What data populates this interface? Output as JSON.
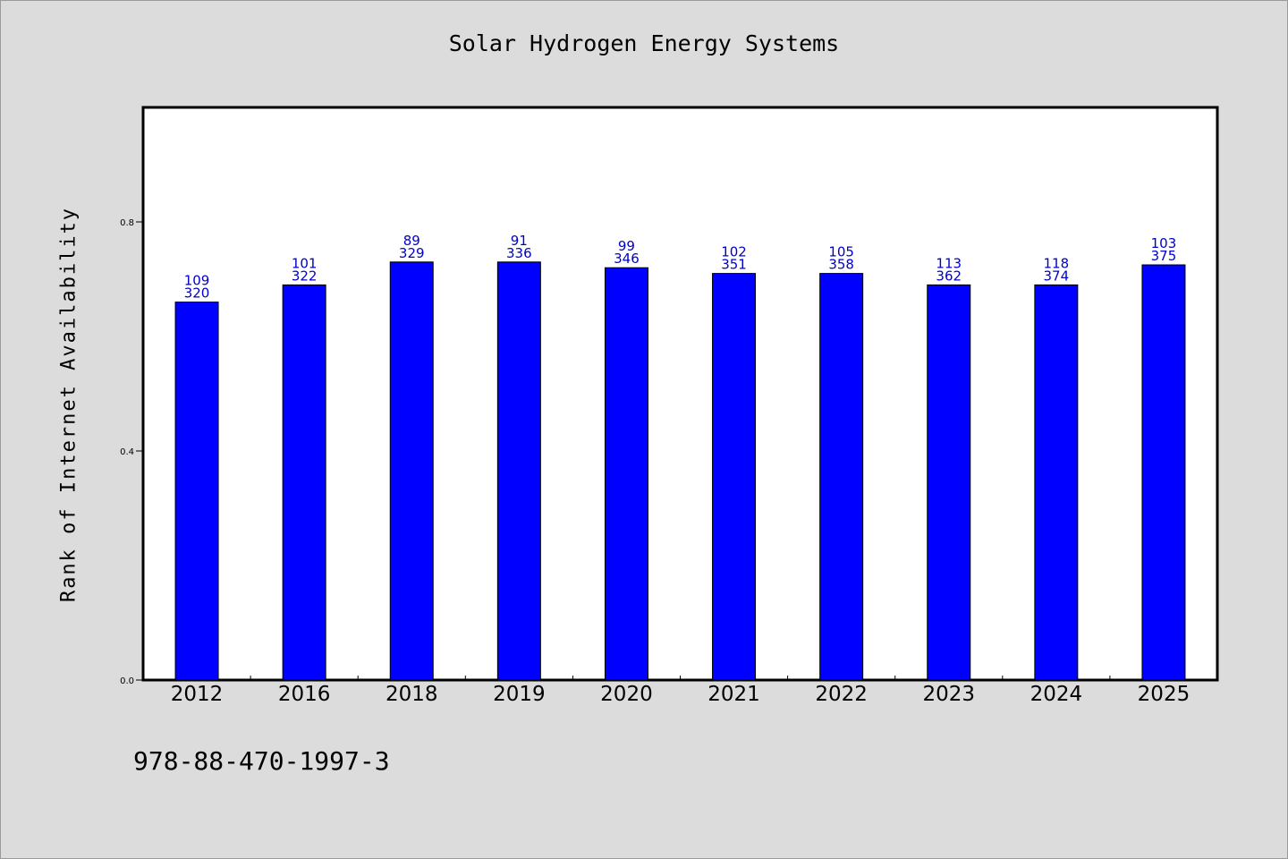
{
  "chart_data": {
    "type": "bar",
    "title": "Solar Hydrogen Energy Systems",
    "xlabel": "",
    "ylabel": "Rank of Internet Availability",
    "categories": [
      "2012",
      "2016",
      "2018",
      "2019",
      "2020",
      "2021",
      "2022",
      "2023",
      "2024",
      "2025"
    ],
    "values": [
      0.66,
      0.69,
      0.73,
      0.73,
      0.72,
      0.71,
      0.71,
      0.69,
      0.69,
      0.725
    ],
    "labels_top": [
      "109",
      "101",
      "89",
      "91",
      "99",
      "102",
      "105",
      "113",
      "118",
      "103"
    ],
    "labels_bottom": [
      "320",
      "322",
      "329",
      "336",
      "346",
      "351",
      "358",
      "362",
      "374",
      "375"
    ],
    "ylim": [
      0,
      1.0
    ],
    "yticks": [
      0.0,
      0.4,
      0.8
    ],
    "ytick_labels": [
      "0.0",
      "0.4",
      "0.8"
    ],
    "grid": false,
    "colors": {
      "bar": "#0000ff",
      "bar_edge": "#000000",
      "data_label": "#0000cc",
      "background": "#dcdcdc",
      "plot_background": "#ffffff"
    }
  },
  "footer": {
    "isbn": "978-88-470-1997-3"
  }
}
